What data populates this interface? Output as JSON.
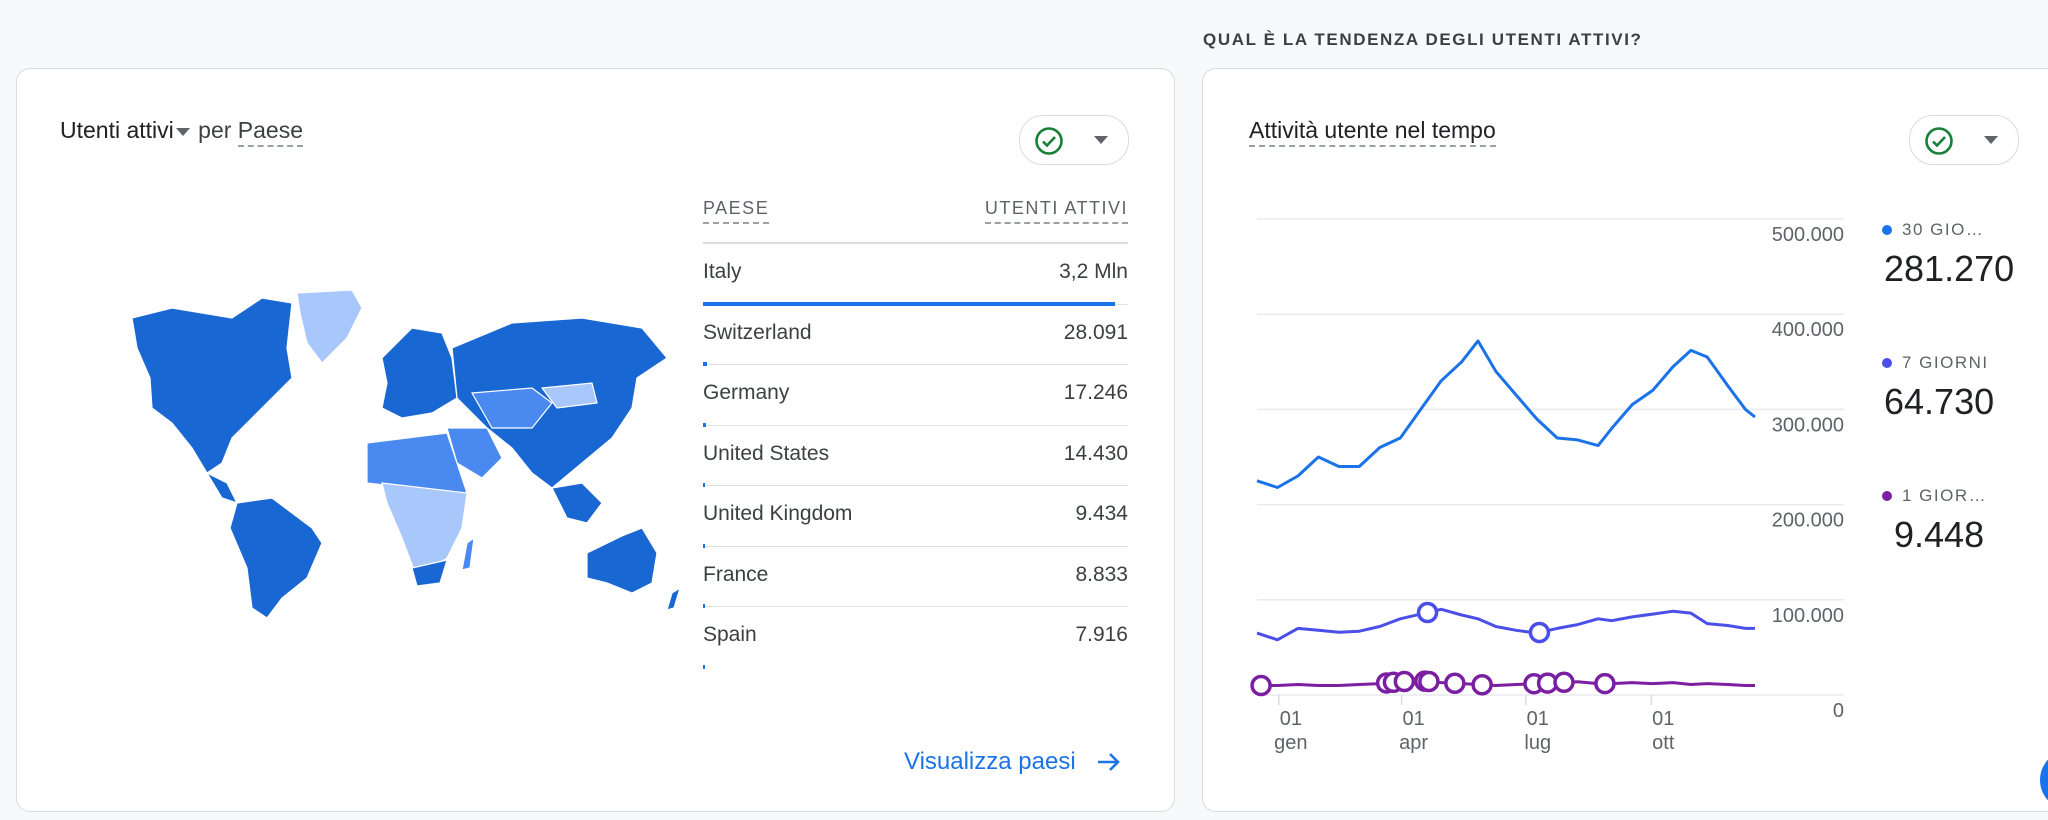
{
  "left_card": {
    "metric": "Utenti attivi",
    "per": "per",
    "dimension": "Paese",
    "table": {
      "headers": [
        "PAESE",
        "UTENTI ATTIVI"
      ],
      "rows": [
        {
          "country": "Italy",
          "users": "3,2 Mln",
          "share": 0.97
        },
        {
          "country": "Switzerland",
          "users": "28.091",
          "share": 0.009
        },
        {
          "country": "Germany",
          "users": "17.246",
          "share": 0.006
        },
        {
          "country": "United States",
          "users": "14.430",
          "share": 0.005
        },
        {
          "country": "United Kingdom",
          "users": "9.434",
          "share": 0.003
        },
        {
          "country": "France",
          "users": "8.833",
          "share": 0.003
        },
        {
          "country": "Spain",
          "users": "7.916",
          "share": 0.002
        }
      ]
    },
    "view_link": "Visualizza paesi"
  },
  "section_title": "QUAL È LA TENDENZA DEGLI UTENTI ATTIVI?",
  "right_card": {
    "title": "Attività utente nel tempo",
    "legend": [
      {
        "label": "30 GIO…",
        "value": "281.270",
        "color": "#1a73e8"
      },
      {
        "label": "7 GIORNI",
        "value": "64.730",
        "color": "#4a4fe8"
      },
      {
        "label": "1 GIOR…",
        "value": "9.448",
        "color": "#7b1fa2"
      }
    ]
  },
  "colors": {
    "accent": "#1a73e8",
    "check": "#188038",
    "map_dark": "#1967d2",
    "map_mid": "#4a8af0",
    "map_light": "#a8c7fa"
  },
  "chart_data": {
    "type": "line",
    "title": "Attività utente nel tempo",
    "y_ticks": [
      "500.000",
      "400.000",
      "300.000",
      "200.000",
      "100.000",
      "0"
    ],
    "ylim": [
      0,
      500000
    ],
    "x_ticks": [
      {
        "day": "01",
        "month": "gen",
        "x": 16
      },
      {
        "day": "01",
        "month": "apr",
        "x": 106
      },
      {
        "day": "01",
        "month": "lug",
        "x": 197
      },
      {
        "day": "01",
        "month": "ott",
        "x": 289
      }
    ],
    "x_range": [
      0,
      365
    ],
    "x": [
      0,
      15,
      30,
      45,
      60,
      75,
      90,
      105,
      120,
      135,
      150,
      162,
      175,
      190,
      205,
      220,
      235,
      250,
      260,
      275,
      290,
      305,
      318,
      330,
      345,
      358,
      365
    ],
    "series": [
      {
        "name": "30 giorni",
        "color": "#1a73e8",
        "values": [
          225000,
          218000,
          230000,
          250000,
          240000,
          240000,
          260000,
          270000,
          300000,
          330000,
          350000,
          372000,
          340000,
          315000,
          290000,
          270000,
          268000,
          262000,
          280000,
          305000,
          320000,
          345000,
          362000,
          355000,
          325000,
          300000,
          292000
        ]
      },
      {
        "name": "7 giorni",
        "color": "#4a4fe8",
        "values": [
          65000,
          58000,
          70000,
          68000,
          66000,
          67000,
          72000,
          80000,
          85000,
          90000,
          84000,
          80000,
          72000,
          68000,
          65000,
          70000,
          74000,
          80000,
          78000,
          82000,
          85000,
          88000,
          86000,
          75000,
          73000,
          70000,
          70000
        ]
      },
      {
        "name": "1 giorno",
        "color": "#7b1fa2",
        "values": [
          10000,
          10000,
          11000,
          10000,
          10000,
          11000,
          12000,
          14000,
          15000,
          13000,
          12000,
          11000,
          10000,
          11000,
          12000,
          13000,
          14000,
          12000,
          12000,
          13000,
          12000,
          13000,
          11000,
          12000,
          11000,
          10000,
          10000
        ]
      }
    ],
    "anomalies": [
      {
        "series": 1,
        "x": [
          125,
          207
        ]
      },
      {
        "series": 2,
        "x": [
          3,
          95,
          100,
          108,
          123,
          126,
          145,
          165,
          203,
          213,
          225,
          255
        ]
      }
    ]
  }
}
